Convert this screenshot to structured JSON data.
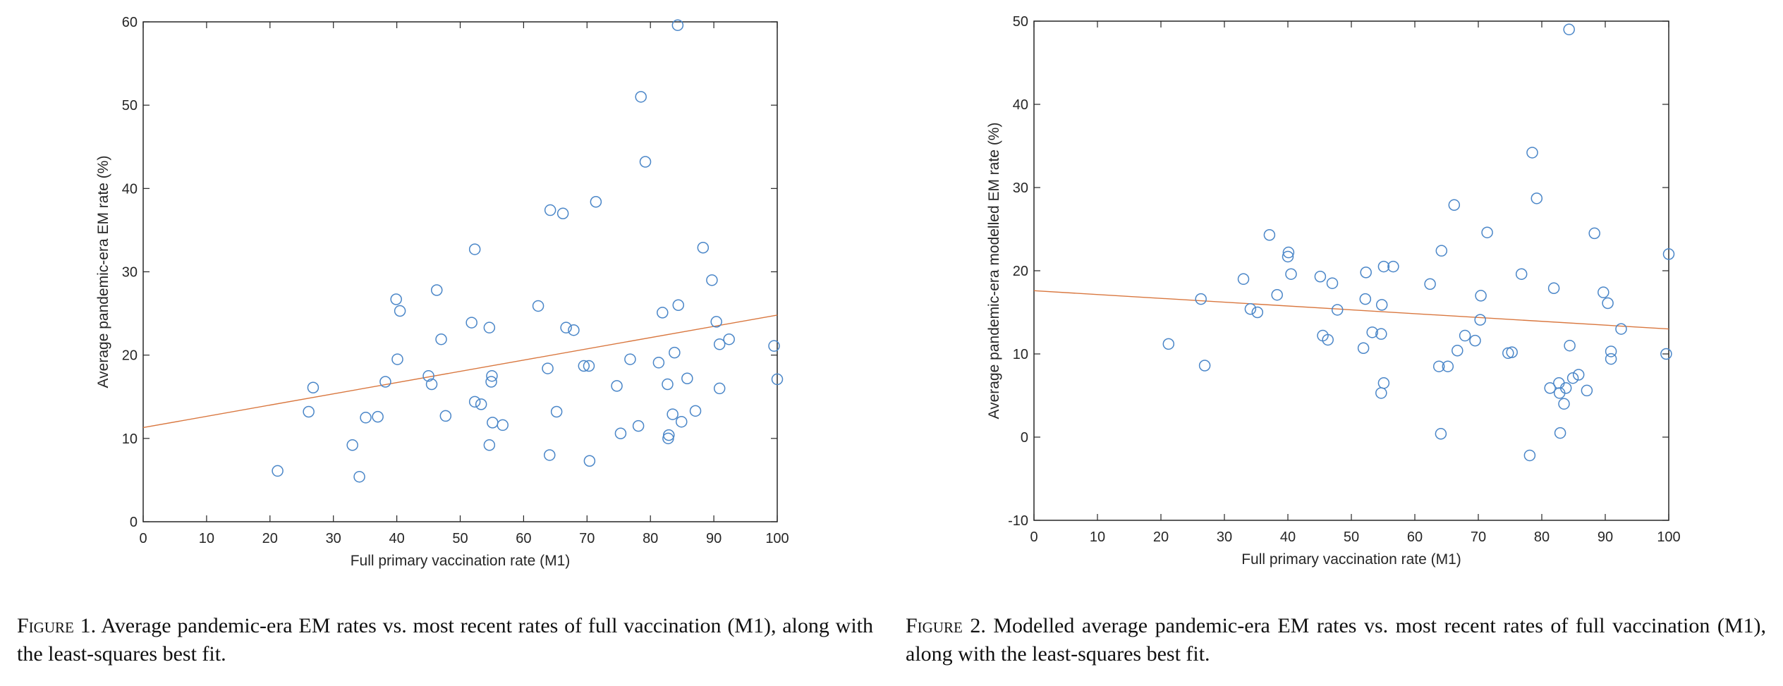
{
  "chart_data": [
    {
      "type": "scatter",
      "title": "",
      "xlabel": "Full primary vaccination rate (M1)",
      "ylabel": "Average pandemic-era EM rate (%)",
      "xlim": [
        0,
        100
      ],
      "ylim": [
        0,
        60
      ],
      "xticks": [
        0,
        10,
        20,
        30,
        40,
        50,
        60,
        70,
        80,
        90,
        100
      ],
      "yticks": [
        0,
        10,
        20,
        30,
        40,
        50,
        60
      ],
      "grid": false,
      "marker_color": "#4a86c8",
      "fit_color": "#d9773f",
      "fit_line": {
        "x": [
          0,
          100
        ],
        "y": [
          11.3,
          24.8
        ]
      },
      "points": [
        [
          21.2,
          6.1
        ],
        [
          26.1,
          13.2
        ],
        [
          26.8,
          16.1
        ],
        [
          33.0,
          9.2
        ],
        [
          34.1,
          5.4
        ],
        [
          35.1,
          12.5
        ],
        [
          37.0,
          12.6
        ],
        [
          38.2,
          16.8
        ],
        [
          39.9,
          26.7
        ],
        [
          40.1,
          19.5
        ],
        [
          40.5,
          25.3
        ],
        [
          45.0,
          17.5
        ],
        [
          45.5,
          16.5
        ],
        [
          46.3,
          27.8
        ],
        [
          47.0,
          21.9
        ],
        [
          47.7,
          12.7
        ],
        [
          51.8,
          23.9
        ],
        [
          52.3,
          14.4
        ],
        [
          52.3,
          32.7
        ],
        [
          53.3,
          14.1
        ],
        [
          54.6,
          23.3
        ],
        [
          54.6,
          9.2
        ],
        [
          54.9,
          16.8
        ],
        [
          55.0,
          17.5
        ],
        [
          55.1,
          11.9
        ],
        [
          56.7,
          11.6
        ],
        [
          62.3,
          25.9
        ],
        [
          63.8,
          18.4
        ],
        [
          64.1,
          8.0
        ],
        [
          64.2,
          37.4
        ],
        [
          65.2,
          13.2
        ],
        [
          66.2,
          37.0
        ],
        [
          66.7,
          23.3
        ],
        [
          67.9,
          23.0
        ],
        [
          69.5,
          18.7
        ],
        [
          70.3,
          18.7
        ],
        [
          70.4,
          7.3
        ],
        [
          71.4,
          38.4
        ],
        [
          74.7,
          16.3
        ],
        [
          75.3,
          10.6
        ],
        [
          76.8,
          19.5
        ],
        [
          78.1,
          11.5
        ],
        [
          78.5,
          51.0
        ],
        [
          79.2,
          43.2
        ],
        [
          81.3,
          19.1
        ],
        [
          81.9,
          25.1
        ],
        [
          82.7,
          16.5
        ],
        [
          82.9,
          10.4
        ],
        [
          82.8,
          10.0
        ],
        [
          83.5,
          12.9
        ],
        [
          83.8,
          20.3
        ],
        [
          84.3,
          59.6
        ],
        [
          84.4,
          26.0
        ],
        [
          84.9,
          12.0
        ],
        [
          85.8,
          17.2
        ],
        [
          87.1,
          13.3
        ],
        [
          88.3,
          32.9
        ],
        [
          89.7,
          29.0
        ],
        [
          90.4,
          24.0
        ],
        [
          90.9,
          21.3
        ],
        [
          90.9,
          16.0
        ],
        [
          92.4,
          21.9
        ],
        [
          99.5,
          21.1
        ],
        [
          100.0,
          17.1
        ]
      ]
    },
    {
      "type": "scatter",
      "title": "",
      "xlabel": "Full primary vaccination rate (M1)",
      "ylabel": "Average pandemic-era modelled EM rate (%)",
      "xlim": [
        0,
        100
      ],
      "ylim": [
        -10,
        50
      ],
      "xticks": [
        0,
        10,
        20,
        30,
        40,
        50,
        60,
        70,
        80,
        90,
        100
      ],
      "yticks": [
        -10,
        0,
        10,
        20,
        30,
        40,
        50
      ],
      "grid": false,
      "marker_color": "#4a86c8",
      "fit_color": "#d9773f",
      "fit_line": {
        "x": [
          0,
          100
        ],
        "y": [
          17.6,
          13.0
        ]
      },
      "points": [
        [
          21.2,
          11.2
        ],
        [
          26.3,
          16.6
        ],
        [
          26.9,
          8.6
        ],
        [
          33.0,
          19.0
        ],
        [
          34.1,
          15.4
        ],
        [
          35.2,
          15.0
        ],
        [
          37.1,
          24.3
        ],
        [
          38.3,
          17.1
        ],
        [
          40.1,
          22.2
        ],
        [
          40.0,
          21.7
        ],
        [
          40.5,
          19.6
        ],
        [
          45.1,
          19.3
        ],
        [
          45.5,
          12.2
        ],
        [
          46.3,
          11.7
        ],
        [
          47.0,
          18.5
        ],
        [
          47.8,
          15.3
        ],
        [
          51.9,
          10.7
        ],
        [
          52.2,
          16.6
        ],
        [
          52.3,
          19.8
        ],
        [
          53.3,
          12.6
        ],
        [
          54.7,
          12.4
        ],
        [
          54.7,
          5.3
        ],
        [
          54.8,
          15.9
        ],
        [
          55.1,
          20.5
        ],
        [
          55.1,
          6.5
        ],
        [
          56.6,
          20.5
        ],
        [
          62.4,
          18.4
        ],
        [
          63.8,
          8.5
        ],
        [
          64.1,
          0.4
        ],
        [
          64.2,
          22.4
        ],
        [
          65.2,
          8.5
        ],
        [
          66.2,
          27.9
        ],
        [
          66.7,
          10.4
        ],
        [
          67.9,
          12.2
        ],
        [
          69.5,
          11.6
        ],
        [
          70.3,
          14.1
        ],
        [
          70.4,
          17.0
        ],
        [
          71.4,
          24.6
        ],
        [
          74.7,
          10.1
        ],
        [
          75.3,
          10.2
        ],
        [
          76.8,
          19.6
        ],
        [
          78.1,
          -2.2
        ],
        [
          78.5,
          34.2
        ],
        [
          79.2,
          28.7
        ],
        [
          81.3,
          5.9
        ],
        [
          81.9,
          17.9
        ],
        [
          82.7,
          6.5
        ],
        [
          82.8,
          5.3
        ],
        [
          82.9,
          0.5
        ],
        [
          83.5,
          4.0
        ],
        [
          83.8,
          5.9
        ],
        [
          84.3,
          49.0
        ],
        [
          84.4,
          11.0
        ],
        [
          84.9,
          7.1
        ],
        [
          85.8,
          7.5
        ],
        [
          87.1,
          5.6
        ],
        [
          88.3,
          24.5
        ],
        [
          89.7,
          17.4
        ],
        [
          90.4,
          16.1
        ],
        [
          90.9,
          10.3
        ],
        [
          90.9,
          9.4
        ],
        [
          92.5,
          13.0
        ],
        [
          99.6,
          10.0
        ],
        [
          100.0,
          22.0
        ]
      ]
    }
  ],
  "captions": [
    {
      "label": "Figure 1.",
      "text": "Average pandemic-era EM rates vs. most recent rates of full vaccination (M1), along with the least-squares best fit."
    },
    {
      "label": "Figure 2.",
      "text": "Modelled average pandemic-era EM rates vs. most recent rates of full vaccination (M1), along with the least-squares best fit."
    }
  ]
}
